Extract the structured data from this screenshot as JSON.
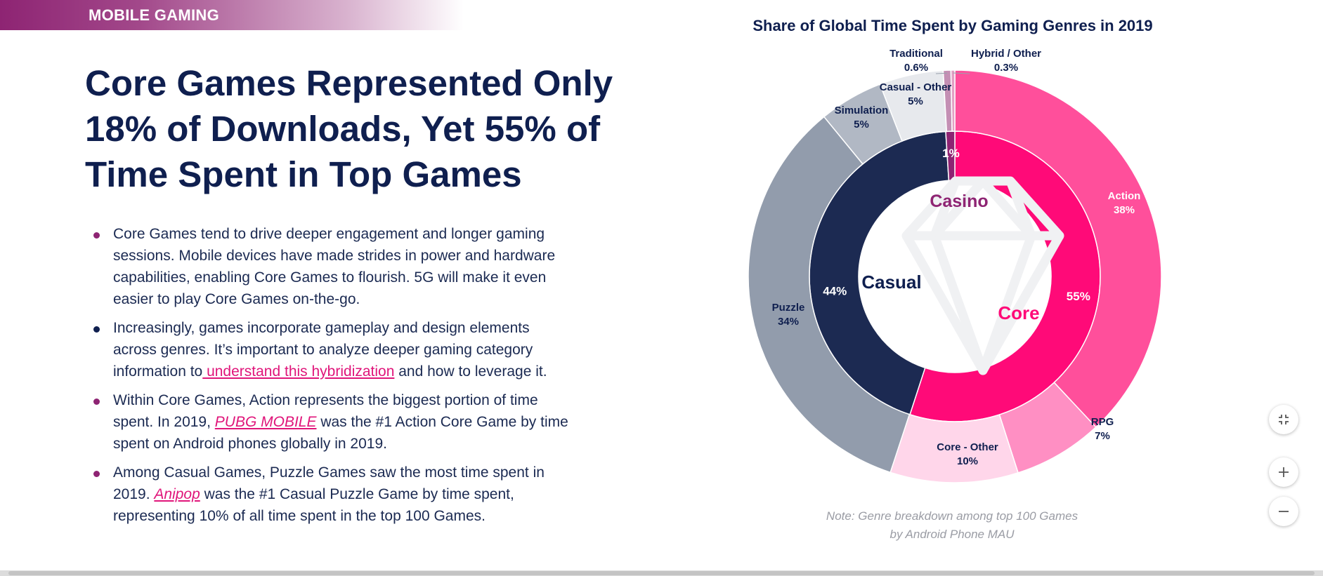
{
  "banner": {
    "label": "MOBILE GAMING"
  },
  "headline": {
    "line1": "Core Games Represented Only",
    "line2": "18% of Downloads, Yet 55% of",
    "line3": "Time Spent in Top Games"
  },
  "bullets": [
    {
      "text": "Core Games tend to drive deeper engagement and longer gaming sessions. Mobile devices have made strides in power and hardware capabilities, enabling Core Games to flourish. 5G will make it even easier to play Core Games on-the-go."
    },
    {
      "before": "Increasingly, games incorporate gameplay and design elements across genres. It’s important to analyze deeper gaming category information to",
      "link": " understand this hybridization",
      "after": " and how to leverage it."
    },
    {
      "before": "Within Core Games, Action represents the biggest portion of time spent. In 2019, ",
      "link": "PUBG MOBILE",
      "after": " was the #1 Action Core Game by time spent on Android phones globally in 2019."
    },
    {
      "before": "Among Casual Games, Puzzle Games saw the most time spent in 2019. ",
      "link": "Anipop",
      "after": " was the #1 Casual Puzzle Game by time spent, representing 10% of all time spent in the top 100 Games."
    }
  ],
  "chart_data": {
    "type": "pie",
    "title": "Share of Global Time Spent by Gaming Genres in 2019",
    "inner_ring": [
      {
        "name": "Core",
        "value": 55,
        "label": "55%",
        "color": "#ff0a78"
      },
      {
        "name": "Casual",
        "value": 44,
        "label": "44%",
        "color": "#1c2a52"
      },
      {
        "name": "Casino",
        "value": 1,
        "label": "1%",
        "color": "#8e2473"
      }
    ],
    "outer_ring": [
      {
        "name": "Action",
        "value": 38,
        "label": "38%",
        "color": "#ff4f9b"
      },
      {
        "name": "RPG",
        "value": 7,
        "label": "7%",
        "color": "#ff8fc3"
      },
      {
        "name": "Core - Other",
        "value": 10,
        "label": "10%",
        "color": "#ffd6ea"
      },
      {
        "name": "Puzzle",
        "value": 34,
        "label": "34%",
        "color": "#929cac"
      },
      {
        "name": "Simulation",
        "value": 5,
        "label": "5%",
        "color": "#b1b8c4"
      },
      {
        "name": "Casual - Other",
        "value": 5,
        "label": "5%",
        "color": "#e7e9ed"
      },
      {
        "name": "Traditional",
        "value": 0.6,
        "label": "0.6%",
        "color": "#c48fb4"
      },
      {
        "name": "Hybrid / Other",
        "value": 0.3,
        "label": "0.3%",
        "color": "#e2a0c4"
      }
    ],
    "note_line1": "Note: Genre breakdown among top 100 Games",
    "note_line2": "by Android Phone MAU"
  },
  "icons": {
    "shrink": "shrink-icon",
    "zoom_in": "plus-icon",
    "zoom_out": "minus-icon"
  }
}
